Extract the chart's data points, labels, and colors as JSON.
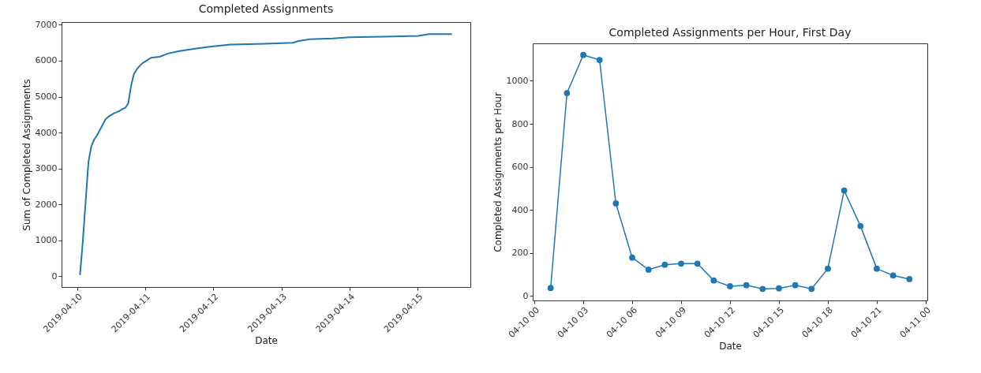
{
  "chart_data": [
    {
      "type": "line",
      "title": "Completed Assignments",
      "xlabel": "Date",
      "ylabel": "Sum of Completed Assignments",
      "x": [
        "2019-04-10T01:00",
        "2019-04-10T02:00",
        "2019-04-10T03:00",
        "2019-04-10T04:00",
        "2019-04-10T05:00",
        "2019-04-10T06:00",
        "2019-04-10T07:00",
        "2019-04-10T08:00",
        "2019-04-10T09:00",
        "2019-04-10T10:00",
        "2019-04-10T11:00",
        "2019-04-10T12:00",
        "2019-04-10T13:00",
        "2019-04-10T14:00",
        "2019-04-10T15:00",
        "2019-04-10T16:00",
        "2019-04-10T17:00",
        "2019-04-10T18:00",
        "2019-04-10T19:00",
        "2019-04-10T20:00",
        "2019-04-10T21:00",
        "2019-04-10T22:00",
        "2019-04-10T23:00",
        "2019-04-11T02:00",
        "2019-04-11T05:00",
        "2019-04-11T08:00",
        "2019-04-11T12:00",
        "2019-04-11T18:00",
        "2019-04-12T00:00",
        "2019-04-12T06:00",
        "2019-04-12T12:00",
        "2019-04-12T18:00",
        "2019-04-13T00:00",
        "2019-04-13T04:00",
        "2019-04-13T06:00",
        "2019-04-13T10:00",
        "2019-04-13T18:00",
        "2019-04-14T00:00",
        "2019-04-14T12:00",
        "2019-04-15T00:00",
        "2019-04-15T04:00",
        "2019-04-15T12:00"
      ],
      "series": [
        {
          "color": "#1f77b4",
          "values": [
            37,
            980,
            2100,
            3197,
            3627,
            3805,
            3927,
            4072,
            4222,
            4372,
            4444,
            4489,
            4539,
            4572,
            4607,
            4657,
            4690,
            4817,
            5307,
            5632,
            5759,
            5854,
            5932,
            6080,
            6110,
            6200,
            6270,
            6340,
            6400,
            6450,
            6460,
            6470,
            6490,
            6500,
            6550,
            6600,
            6620,
            6650,
            6670,
            6690,
            6740,
            6740
          ]
        }
      ],
      "xlim": [
        "2019-04-09T18:30",
        "2019-04-15T18:30"
      ],
      "xticks": [
        "2019-04-10",
        "2019-04-11",
        "2019-04-12",
        "2019-04-13",
        "2019-04-14",
        "2019-04-15"
      ],
      "ylim": [
        -298,
        7075
      ],
      "yticks": [
        0,
        1000,
        2000,
        3000,
        4000,
        5000,
        6000,
        7000
      ]
    },
    {
      "type": "line",
      "title": "Completed Assignments per Hour, First Day",
      "xlabel": "Date",
      "ylabel": "Completed Assignments per Hour",
      "marker": "circle",
      "x": [
        "2019-04-10T01:00",
        "2019-04-10T02:00",
        "2019-04-10T03:00",
        "2019-04-10T04:00",
        "2019-04-10T05:00",
        "2019-04-10T06:00",
        "2019-04-10T07:00",
        "2019-04-10T08:00",
        "2019-04-10T09:00",
        "2019-04-10T10:00",
        "2019-04-10T11:00",
        "2019-04-10T12:00",
        "2019-04-10T13:00",
        "2019-04-10T14:00",
        "2019-04-10T15:00",
        "2019-04-10T16:00",
        "2019-04-10T17:00",
        "2019-04-10T18:00",
        "2019-04-10T19:00",
        "2019-04-10T20:00",
        "2019-04-10T21:00",
        "2019-04-10T22:00",
        "2019-04-10T23:00"
      ],
      "series": [
        {
          "color": "#1f77b4",
          "values": [
            37,
            943,
            1120,
            1097,
            430,
            178,
            122,
            145,
            150,
            150,
            72,
            45,
            50,
            33,
            35,
            50,
            33,
            127,
            490,
            325,
            127,
            95,
            78
          ]
        }
      ],
      "xlim": [
        "2019-04-09T23:54",
        "2019-04-11T00:06"
      ],
      "xticks": [
        {
          "value": "2019-04-10T00:00",
          "label": "04-10 00"
        },
        {
          "value": "2019-04-10T03:00",
          "label": "04-10 03"
        },
        {
          "value": "2019-04-10T06:00",
          "label": "04-10 06"
        },
        {
          "value": "2019-04-10T09:00",
          "label": "04-10 09"
        },
        {
          "value": "2019-04-10T12:00",
          "label": "04-10 12"
        },
        {
          "value": "2019-04-10T15:00",
          "label": "04-10 15"
        },
        {
          "value": "2019-04-10T18:00",
          "label": "04-10 18"
        },
        {
          "value": "2019-04-10T21:00",
          "label": "04-10 21"
        },
        {
          "value": "2019-04-11T00:00",
          "label": "04-11 00"
        }
      ],
      "ylim": [
        -21,
        1174
      ],
      "yticks": [
        0,
        200,
        400,
        600,
        800,
        1000
      ]
    }
  ]
}
